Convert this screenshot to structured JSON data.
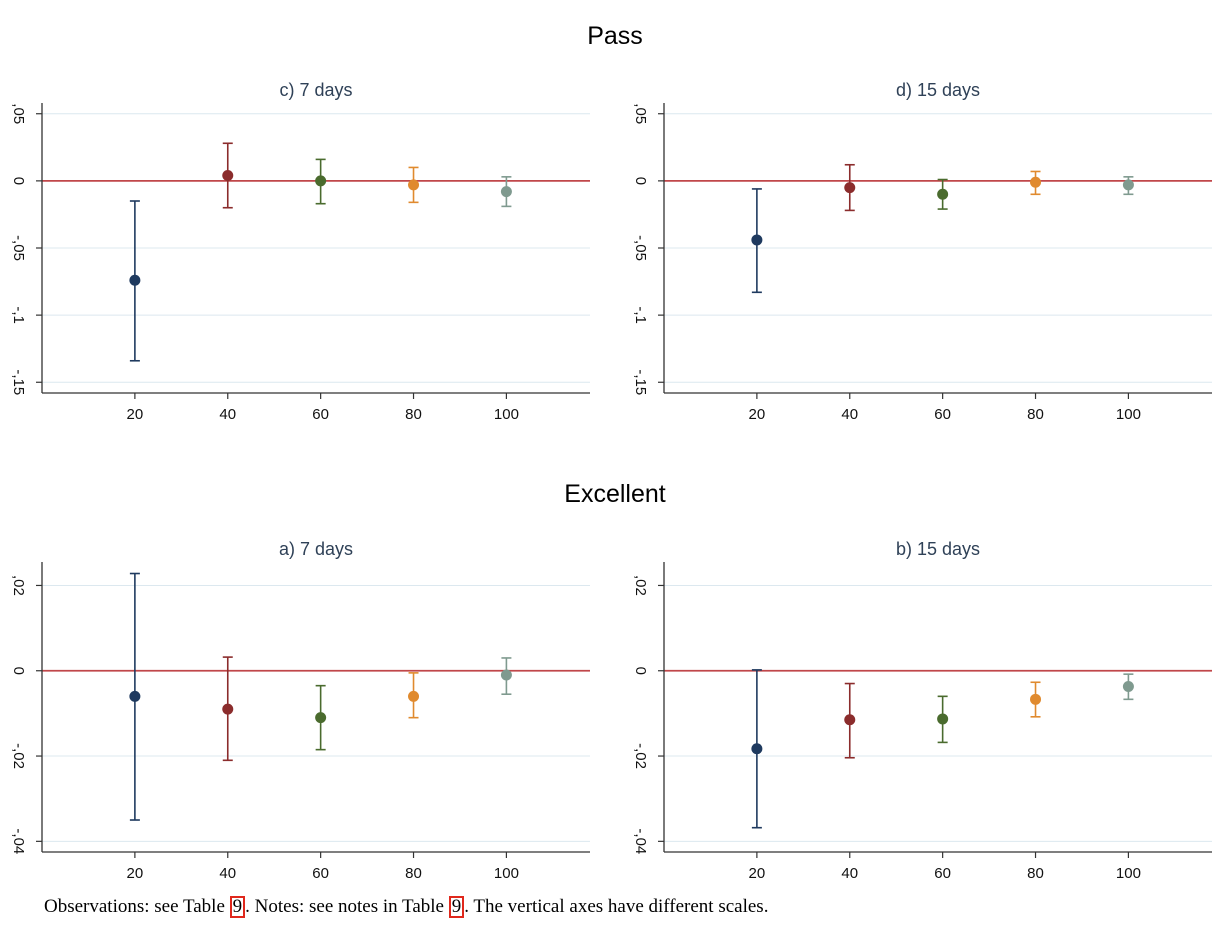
{
  "sections": {
    "top_title": "Pass",
    "bottom_title": "Excellent"
  },
  "caption": {
    "part1": "Observations: see Table ",
    "ref1": "9",
    "part2": ". Notes: see notes in Table ",
    "ref2": "9",
    "part3": ". The vertical axes have different scales."
  },
  "colors": {
    "series": [
      "#1f3a5f",
      "#8b2c2c",
      "#4a6b2e",
      "#e08a2e",
      "#7f9a8f"
    ],
    "zero_line": "#c0474a",
    "grid": "#dce8ef",
    "title": "#2f4157"
  },
  "chart_data": [
    {
      "type": "scatter",
      "title": "c) 7 days",
      "x": [
        20,
        40,
        60,
        80,
        100
      ],
      "xticks": [
        "20",
        "40",
        "60",
        "80",
        "100"
      ],
      "y": [
        -0.074,
        0.004,
        0.0,
        -0.003,
        -0.008
      ],
      "ci_low": [
        -0.134,
        -0.02,
        -0.017,
        -0.016,
        -0.019
      ],
      "ci_high": [
        -0.015,
        0.028,
        0.016,
        0.01,
        0.003
      ],
      "yticks": [
        0.05,
        0,
        -0.05,
        -0.1,
        -0.15
      ],
      "ytick_labels": [
        ",05",
        "0",
        "-,05",
        "-,1",
        "-,15"
      ],
      "ylim": [
        -0.158,
        0.058
      ],
      "xlim": [
        0,
        118
      ],
      "grid": true
    },
    {
      "type": "scatter",
      "title": "d) 15 days",
      "x": [
        20,
        40,
        60,
        80,
        100
      ],
      "xticks": [
        "20",
        "40",
        "60",
        "80",
        "100"
      ],
      "y": [
        -0.044,
        -0.005,
        -0.01,
        -0.001,
        -0.003
      ],
      "ci_low": [
        -0.083,
        -0.022,
        -0.021,
        -0.01,
        -0.01
      ],
      "ci_high": [
        -0.006,
        0.012,
        0.001,
        0.007,
        0.003
      ],
      "yticks": [
        0.05,
        0,
        -0.05,
        -0.1,
        -0.15
      ],
      "ytick_labels": [
        ",05",
        "0",
        "-,05",
        "-,1",
        "-,15"
      ],
      "ylim": [
        -0.158,
        0.058
      ],
      "xlim": [
        0,
        118
      ],
      "grid": true
    },
    {
      "type": "scatter",
      "title": "a) 7 days",
      "x": [
        20,
        40,
        60,
        80,
        100
      ],
      "xticks": [
        "20",
        "40",
        "60",
        "80",
        "100"
      ],
      "y": [
        -0.006,
        -0.009,
        -0.011,
        -0.006,
        -0.001
      ],
      "ci_low": [
        -0.035,
        -0.021,
        -0.0185,
        -0.011,
        -0.0055
      ],
      "ci_high": [
        0.0228,
        0.0032,
        -0.0035,
        -0.0005,
        0.003
      ],
      "yticks": [
        0.02,
        0,
        -0.02,
        -0.04
      ],
      "ytick_labels": [
        ",02",
        "0",
        "-,02",
        "-,04"
      ],
      "ylim": [
        -0.0425,
        0.0255
      ],
      "xlim": [
        0,
        118
      ],
      "grid": true
    },
    {
      "type": "scatter",
      "title": "b) 15 days",
      "x": [
        20,
        40,
        60,
        80,
        100
      ],
      "xticks": [
        "20",
        "40",
        "60",
        "80",
        "100"
      ],
      "y": [
        -0.0183,
        -0.0115,
        -0.0113,
        -0.0067,
        -0.0037
      ],
      "ci_low": [
        -0.0368,
        -0.0204,
        -0.0168,
        -0.0108,
        -0.0067
      ],
      "ci_high": [
        0.0002,
        -0.003,
        -0.006,
        -0.0027,
        -0.0008
      ],
      "yticks": [
        0.02,
        0,
        -0.02,
        -0.04
      ],
      "ytick_labels": [
        ",02",
        "0",
        "-,02",
        "-,04"
      ],
      "ylim": [
        -0.0425,
        0.0255
      ],
      "xlim": [
        0,
        118
      ],
      "grid": true
    }
  ]
}
